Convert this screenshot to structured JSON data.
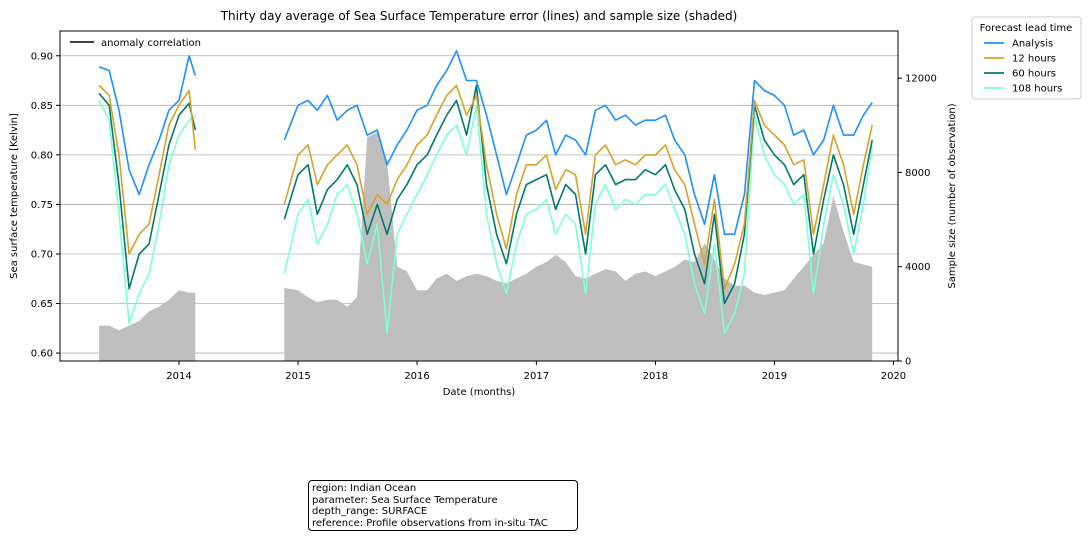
{
  "chart_data": {
    "type": "line",
    "title": "Thirty day average of Sea Surface Temperature error (lines) and sample size (shaded)",
    "xlabel": "Date (months)",
    "ylabel": "Sea surface temperature [Kelvin]",
    "y2label": "Sample size (number of observation)",
    "xlim": [
      "2013-01-01",
      "2020-01-15"
    ],
    "ylim": [
      0.592,
      0.925
    ],
    "y2lim": [
      0,
      14000
    ],
    "x_ticks": [
      "2014",
      "2015",
      "2016",
      "2017",
      "2018",
      "2019",
      "2020"
    ],
    "y_ticks": [
      "0.60",
      "0.65",
      "0.70",
      "0.75",
      "0.80",
      "0.85",
      "0.90"
    ],
    "y2_ticks": [
      "0",
      "4000",
      "8000",
      "12000"
    ],
    "grid": "y",
    "legend_title": "Forecast lead time",
    "legend_placement": "outside-top-right",
    "anomaly_legend": "anomaly correlation",
    "segment_breaks": [
      "2014-02-20",
      "2014-11-20"
    ],
    "series": [
      {
        "name": "Analysis",
        "color": "#1e90ff",
        "x": [
          "2013-05-01",
          "2013-06-01",
          "2013-07-01",
          "2013-08-01",
          "2013-09-01",
          "2013-10-01",
          "2013-11-01",
          "2013-12-01",
          "2014-01-01",
          "2014-02-01",
          "2014-02-20",
          "2014-11-20",
          "2015-01-01",
          "2015-02-01",
          "2015-03-01",
          "2015-04-01",
          "2015-05-01",
          "2015-06-01",
          "2015-07-01",
          "2015-08-01",
          "2015-09-01",
          "2015-10-01",
          "2015-11-01",
          "2015-12-01",
          "2016-01-01",
          "2016-02-01",
          "2016-03-01",
          "2016-04-01",
          "2016-05-01",
          "2016-06-01",
          "2016-07-01",
          "2016-08-01",
          "2016-09-01",
          "2016-10-01",
          "2016-11-01",
          "2016-12-01",
          "2017-01-01",
          "2017-02-01",
          "2017-03-01",
          "2017-04-01",
          "2017-05-01",
          "2017-06-01",
          "2017-07-01",
          "2017-08-01",
          "2017-09-01",
          "2017-10-01",
          "2017-11-01",
          "2017-12-01",
          "2018-01-01",
          "2018-02-01",
          "2018-03-01",
          "2018-04-01",
          "2018-05-01",
          "2018-06-01",
          "2018-07-01",
          "2018-08-01",
          "2018-09-01",
          "2018-10-01",
          "2018-11-01",
          "2018-12-01",
          "2019-01-01",
          "2019-02-01",
          "2019-03-01",
          "2019-04-01",
          "2019-05-01",
          "2019-06-01",
          "2019-07-01",
          "2019-08-01",
          "2019-09-01",
          "2019-10-01",
          "2019-10-28"
        ],
        "values": [
          0.889,
          0.885,
          0.845,
          0.785,
          0.76,
          0.79,
          0.815,
          0.845,
          0.855,
          0.9,
          0.88,
          0.815,
          0.85,
          0.855,
          0.845,
          0.86,
          0.835,
          0.845,
          0.85,
          0.82,
          0.825,
          0.79,
          0.81,
          0.825,
          0.845,
          0.85,
          0.87,
          0.885,
          0.905,
          0.875,
          0.875,
          0.84,
          0.8,
          0.76,
          0.79,
          0.82,
          0.825,
          0.835,
          0.8,
          0.82,
          0.815,
          0.8,
          0.845,
          0.85,
          0.835,
          0.84,
          0.83,
          0.835,
          0.835,
          0.84,
          0.815,
          0.8,
          0.76,
          0.73,
          0.78,
          0.72,
          0.72,
          0.76,
          0.875,
          0.865,
          0.86,
          0.85,
          0.82,
          0.825,
          0.8,
          0.815,
          0.85,
          0.82,
          0.82,
          0.84,
          0.853
        ]
      },
      {
        "name": "12 hours",
        "color": "#daa12a",
        "x": [
          "2013-05-01",
          "2013-06-01",
          "2013-07-01",
          "2013-08-01",
          "2013-09-01",
          "2013-10-01",
          "2013-11-01",
          "2013-12-01",
          "2014-01-01",
          "2014-02-01",
          "2014-02-20",
          "2014-11-20",
          "2015-01-01",
          "2015-02-01",
          "2015-03-01",
          "2015-04-01",
          "2015-05-01",
          "2015-06-01",
          "2015-07-01",
          "2015-08-01",
          "2015-09-01",
          "2015-10-01",
          "2015-11-01",
          "2015-12-01",
          "2016-01-01",
          "2016-02-01",
          "2016-03-01",
          "2016-04-01",
          "2016-05-01",
          "2016-06-01",
          "2016-07-01",
          "2016-08-01",
          "2016-09-01",
          "2016-10-01",
          "2016-11-01",
          "2016-12-01",
          "2017-01-01",
          "2017-02-01",
          "2017-03-01",
          "2017-04-01",
          "2017-05-01",
          "2017-06-01",
          "2017-07-01",
          "2017-08-01",
          "2017-09-01",
          "2017-10-01",
          "2017-11-01",
          "2017-12-01",
          "2018-01-01",
          "2018-02-01",
          "2018-03-01",
          "2018-04-01",
          "2018-05-01",
          "2018-06-01",
          "2018-07-01",
          "2018-08-01",
          "2018-09-01",
          "2018-10-01",
          "2018-11-01",
          "2018-12-01",
          "2019-01-01",
          "2019-02-01",
          "2019-03-01",
          "2019-04-01",
          "2019-05-01",
          "2019-06-01",
          "2019-07-01",
          "2019-08-01",
          "2019-09-01",
          "2019-10-01",
          "2019-10-28"
        ],
        "values": [
          0.87,
          0.86,
          0.8,
          0.7,
          0.72,
          0.73,
          0.78,
          0.83,
          0.85,
          0.865,
          0.805,
          0.75,
          0.8,
          0.81,
          0.77,
          0.79,
          0.8,
          0.81,
          0.79,
          0.74,
          0.76,
          0.75,
          0.775,
          0.79,
          0.81,
          0.82,
          0.84,
          0.86,
          0.87,
          0.84,
          0.86,
          0.79,
          0.74,
          0.705,
          0.76,
          0.79,
          0.79,
          0.8,
          0.765,
          0.785,
          0.78,
          0.72,
          0.8,
          0.81,
          0.79,
          0.795,
          0.79,
          0.8,
          0.8,
          0.81,
          0.785,
          0.77,
          0.73,
          0.69,
          0.755,
          0.665,
          0.69,
          0.73,
          0.855,
          0.83,
          0.82,
          0.81,
          0.79,
          0.795,
          0.72,
          0.77,
          0.82,
          0.79,
          0.74,
          0.79,
          0.83
        ]
      },
      {
        "name": "60 hours",
        "color": "#00796b",
        "x": [
          "2013-05-01",
          "2013-06-01",
          "2013-07-01",
          "2013-08-01",
          "2013-09-01",
          "2013-10-01",
          "2013-11-01",
          "2013-12-01",
          "2014-01-01",
          "2014-02-01",
          "2014-02-20",
          "2014-11-20",
          "2015-01-01",
          "2015-02-01",
          "2015-03-01",
          "2015-04-01",
          "2015-05-01",
          "2015-06-01",
          "2015-07-01",
          "2015-08-01",
          "2015-09-01",
          "2015-10-01",
          "2015-11-01",
          "2015-12-01",
          "2016-01-01",
          "2016-02-01",
          "2016-03-01",
          "2016-04-01",
          "2016-05-01",
          "2016-06-01",
          "2016-07-01",
          "2016-08-01",
          "2016-09-01",
          "2016-10-01",
          "2016-11-01",
          "2016-12-01",
          "2017-01-01",
          "2017-02-01",
          "2017-03-01",
          "2017-04-01",
          "2017-05-01",
          "2017-06-01",
          "2017-07-01",
          "2017-08-01",
          "2017-09-01",
          "2017-10-01",
          "2017-11-01",
          "2017-12-01",
          "2018-01-01",
          "2018-02-01",
          "2018-03-01",
          "2018-04-01",
          "2018-05-01",
          "2018-06-01",
          "2018-07-01",
          "2018-08-01",
          "2018-09-01",
          "2018-10-01",
          "2018-11-01",
          "2018-12-01",
          "2019-01-01",
          "2019-02-01",
          "2019-03-01",
          "2019-04-01",
          "2019-05-01",
          "2019-06-01",
          "2019-07-01",
          "2019-08-01",
          "2019-09-01",
          "2019-10-01",
          "2019-10-28"
        ],
        "values": [
          0.862,
          0.85,
          0.77,
          0.665,
          0.7,
          0.71,
          0.76,
          0.81,
          0.84,
          0.852,
          0.825,
          0.735,
          0.78,
          0.79,
          0.74,
          0.765,
          0.775,
          0.79,
          0.77,
          0.72,
          0.75,
          0.72,
          0.755,
          0.77,
          0.79,
          0.8,
          0.82,
          0.84,
          0.855,
          0.82,
          0.87,
          0.77,
          0.72,
          0.69,
          0.74,
          0.77,
          0.775,
          0.78,
          0.745,
          0.77,
          0.76,
          0.7,
          0.78,
          0.79,
          0.77,
          0.775,
          0.775,
          0.785,
          0.78,
          0.79,
          0.765,
          0.745,
          0.7,
          0.67,
          0.74,
          0.65,
          0.67,
          0.72,
          0.85,
          0.815,
          0.8,
          0.79,
          0.77,
          0.78,
          0.7,
          0.755,
          0.8,
          0.77,
          0.72,
          0.77,
          0.815
        ]
      },
      {
        "name": "108 hours",
        "color": "#7fffd4",
        "x": [
          "2013-05-01",
          "2013-06-01",
          "2013-07-01",
          "2013-08-01",
          "2013-09-01",
          "2013-10-01",
          "2013-11-01",
          "2013-12-01",
          "2014-01-01",
          "2014-02-01",
          "2014-02-20",
          "2014-11-20",
          "2015-01-01",
          "2015-02-01",
          "2015-03-01",
          "2015-04-01",
          "2015-05-01",
          "2015-06-01",
          "2015-07-01",
          "2015-08-01",
          "2015-09-01",
          "2015-10-01",
          "2015-11-01",
          "2015-12-01",
          "2016-01-01",
          "2016-02-01",
          "2016-03-01",
          "2016-04-01",
          "2016-05-01",
          "2016-06-01",
          "2016-07-01",
          "2016-08-01",
          "2016-09-01",
          "2016-10-01",
          "2016-11-01",
          "2016-12-01",
          "2017-01-01",
          "2017-02-01",
          "2017-03-01",
          "2017-04-01",
          "2017-05-01",
          "2017-06-01",
          "2017-07-01",
          "2017-08-01",
          "2017-09-01",
          "2017-10-01",
          "2017-11-01",
          "2017-12-01",
          "2018-01-01",
          "2018-02-01",
          "2018-03-01",
          "2018-04-01",
          "2018-05-01",
          "2018-06-01",
          "2018-07-01",
          "2018-08-01",
          "2018-09-01",
          "2018-10-01",
          "2018-11-01",
          "2018-12-01",
          "2019-01-01",
          "2019-02-01",
          "2019-03-01",
          "2019-04-01",
          "2019-05-01",
          "2019-06-01",
          "2019-07-01",
          "2019-08-01",
          "2019-09-01",
          "2019-10-01",
          "2019-10-28"
        ],
        "values": [
          0.855,
          0.835,
          0.74,
          0.63,
          0.66,
          0.68,
          0.73,
          0.79,
          0.82,
          0.835,
          0.84,
          0.68,
          0.74,
          0.755,
          0.71,
          0.73,
          0.76,
          0.77,
          0.74,
          0.69,
          0.73,
          0.62,
          0.72,
          0.74,
          0.76,
          0.78,
          0.8,
          0.82,
          0.83,
          0.8,
          0.85,
          0.74,
          0.69,
          0.66,
          0.71,
          0.74,
          0.745,
          0.755,
          0.72,
          0.74,
          0.73,
          0.66,
          0.75,
          0.77,
          0.745,
          0.755,
          0.75,
          0.76,
          0.76,
          0.77,
          0.745,
          0.72,
          0.67,
          0.64,
          0.71,
          0.62,
          0.64,
          0.68,
          0.84,
          0.8,
          0.78,
          0.77,
          0.75,
          0.76,
          0.66,
          0.73,
          0.78,
          0.75,
          0.7,
          0.75,
          0.81
        ]
      }
    ],
    "sample_size": {
      "color": "#bfbfbf",
      "segment_breaks": [
        "2014-02-20",
        "2014-11-20"
      ],
      "x": [
        "2013-05-01",
        "2013-06-01",
        "2013-07-01",
        "2013-08-01",
        "2013-09-01",
        "2013-10-01",
        "2013-11-01",
        "2013-12-01",
        "2014-01-01",
        "2014-02-01",
        "2014-02-20",
        "2014-11-20",
        "2015-01-01",
        "2015-02-01",
        "2015-03-01",
        "2015-04-01",
        "2015-05-01",
        "2015-06-01",
        "2015-07-01",
        "2015-08-01",
        "2015-09-01",
        "2015-10-01",
        "2015-11-01",
        "2015-12-01",
        "2016-01-01",
        "2016-02-01",
        "2016-03-01",
        "2016-04-01",
        "2016-05-01",
        "2016-06-01",
        "2016-07-01",
        "2016-08-01",
        "2016-09-01",
        "2016-10-01",
        "2016-11-01",
        "2016-12-01",
        "2017-01-01",
        "2017-02-01",
        "2017-03-01",
        "2017-04-01",
        "2017-05-01",
        "2017-06-01",
        "2017-07-01",
        "2017-08-01",
        "2017-09-01",
        "2017-10-01",
        "2017-11-01",
        "2017-12-01",
        "2018-01-01",
        "2018-02-01",
        "2018-03-01",
        "2018-04-01",
        "2018-05-01",
        "2018-06-01",
        "2018-07-01",
        "2018-08-01",
        "2018-09-01",
        "2018-10-01",
        "2018-11-01",
        "2018-12-01",
        "2019-01-01",
        "2019-02-01",
        "2019-03-01",
        "2019-04-01",
        "2019-05-01",
        "2019-06-01",
        "2019-07-01",
        "2019-08-01",
        "2019-09-01",
        "2019-10-01",
        "2019-10-28"
      ],
      "values": [
        1500,
        1500,
        1300,
        1500,
        1700,
        2100,
        2300,
        2600,
        3000,
        2900,
        2900,
        3100,
        3000,
        2700,
        2500,
        2600,
        2600,
        2300,
        2700,
        9500,
        9700,
        8500,
        4000,
        3800,
        3000,
        3000,
        3500,
        3700,
        3400,
        3600,
        3700,
        3600,
        3400,
        3300,
        3500,
        3700,
        4000,
        4200,
        4500,
        4200,
        3600,
        3500,
        3700,
        3900,
        3800,
        3400,
        3700,
        3800,
        3600,
        3800,
        4000,
        4300,
        4200,
        5000,
        4300,
        3500,
        3200,
        3200,
        2900,
        2800,
        2900,
        3000,
        3500,
        4000,
        4500,
        5000,
        7000,
        5500,
        4200,
        4100,
        4000
      ]
    },
    "info_box": [
      "region: Indian Ocean",
      "parameter: Sea Surface Temperature",
      "depth_range: SURFACE",
      "reference: Profile observations from in-situ TAC"
    ]
  }
}
